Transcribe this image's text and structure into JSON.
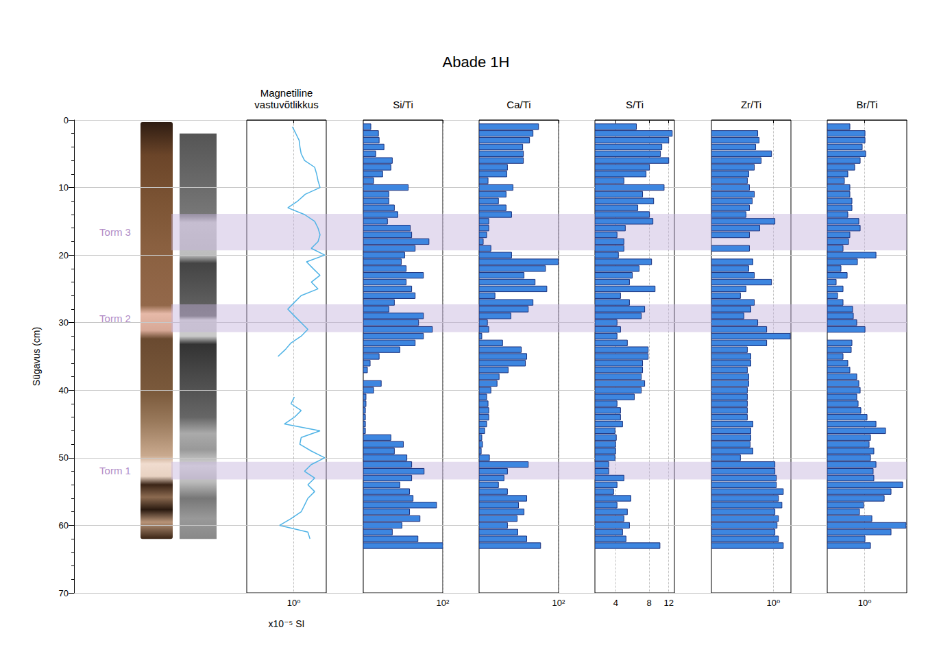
{
  "title": "Abade 1H",
  "ylabel": "Sügavus (cm)",
  "ylim": [
    0,
    70
  ],
  "yticks": [
    0,
    10,
    20,
    30,
    40,
    50,
    60,
    70
  ],
  "grid": true,
  "storms": [
    {
      "label": "Torm 3",
      "from": 13.9,
      "to": 19.3
    },
    {
      "label": "Torm 2",
      "from": 27.3,
      "to": 31.4
    },
    {
      "label": "Torm 1",
      "from": 50.6,
      "to": 53.2
    }
  ],
  "chart_data": [
    {
      "type": "line",
      "title": "Magnetiline vastuvõtlikkus",
      "xlabel": "x10⁻⁵ SI",
      "log": "x",
      "xlim": [
        0.06,
        7
      ],
      "xticks": [
        {
          "value": 1,
          "label": "10⁰"
        }
      ],
      "color": "#4fb3e6",
      "y": [
        1,
        2,
        3,
        4,
        5,
        6,
        7,
        8,
        9,
        10,
        11,
        12,
        13,
        14,
        15,
        16,
        17,
        18,
        19,
        20,
        21,
        22,
        23,
        24,
        25,
        26,
        27,
        28,
        29,
        30,
        31,
        32,
        33,
        34,
        35,
        36,
        37,
        38,
        39,
        40,
        41,
        42,
        43,
        44,
        45,
        46,
        47,
        48,
        49,
        50,
        51,
        52,
        53,
        54,
        55,
        56,
        57,
        58,
        59,
        60,
        61,
        62
      ],
      "values": [
        0.92,
        1.13,
        1.38,
        1.45,
        1.56,
        1.91,
        3.5,
        3.94,
        4.28,
        4.83,
        2.0,
        1.27,
        0.7,
        1.91,
        3.5,
        4.28,
        4.83,
        4.28,
        2.86,
        6.4,
        2.15,
        3.2,
        4.83,
        2.86,
        4.28,
        1.56,
        1.04,
        0.7,
        1.04,
        1.56,
        2.33,
        1.56,
        0.85,
        0.6,
        0.39,
        null,
        null,
        null,
        null,
        null,
        1.04,
        0.85,
        1.56,
        1.04,
        0.57,
        4.83,
        1.56,
        1.44,
        2.86,
        6.4,
        2.86,
        1.91,
        3.5,
        2.33,
        3.5,
        2.33,
        1.91,
        1.56,
        0.85,
        0.43,
        2.33,
        2.64
      ]
    },
    {
      "type": "bar",
      "title": "Si/Ti",
      "log": "x",
      "orientation": "horizontal",
      "xlim": [
        1,
        100
      ],
      "xticks": [
        {
          "value": 100,
          "label": "10²"
        }
      ],
      "color": "#3d86e0",
      "y": [
        1,
        2,
        3,
        4,
        5,
        6,
        7,
        8,
        9,
        10,
        11,
        12,
        13,
        14,
        15,
        16,
        17,
        18,
        19,
        20,
        21,
        22,
        23,
        24,
        25,
        26,
        27,
        28,
        29,
        30,
        31,
        32,
        33,
        34,
        35,
        36,
        37,
        38,
        39,
        40,
        41,
        42,
        43,
        44,
        45,
        46,
        47,
        48,
        49,
        50,
        51,
        52,
        53,
        54,
        55,
        56,
        57,
        58,
        59,
        60,
        61,
        62,
        63
      ],
      "values": [
        1.55,
        2.41,
        2.51,
        3.32,
        2.06,
        5.38,
        4.96,
        3.07,
        1.82,
        13.5,
        4.4,
        4.4,
        6.06,
        7.41,
        4.06,
        15.2,
        16.5,
        44.9,
        20.2,
        11.0,
        9.05,
        12.0,
        32.6,
        12.0,
        16.5,
        20.2,
        6.06,
        4.4,
        32.6,
        24.6,
        54.8,
        32.6,
        20.2,
        8.35,
        2.51,
        1.49,
        1.27,
        null,
        2.83,
        1.82,
        1.17,
        1.17,
        1.13,
        1.13,
        1.13,
        1.13,
        4.96,
        10.2,
        6.06,
        12.5,
        16.5,
        33.9,
        16.5,
        8.35,
        14.6,
        17.9,
        69.7,
        14.6,
        26.7,
        9.42,
        5.38,
        23.7,
        100
      ]
    },
    {
      "type": "bar",
      "title": "Ca/Ti",
      "log": "x",
      "orientation": "horizontal",
      "xlim": [
        1,
        100
      ],
      "xticks": [
        {
          "value": 100,
          "label": "10²"
        }
      ],
      "color": "#3d86e0",
      "y": [
        1,
        2,
        3,
        4,
        5,
        6,
        7,
        8,
        9,
        10,
        11,
        12,
        13,
        14,
        15,
        16,
        17,
        18,
        19,
        20,
        21,
        22,
        23,
        24,
        25,
        26,
        27,
        28,
        29,
        30,
        31,
        32,
        33,
        34,
        35,
        36,
        37,
        38,
        39,
        40,
        41,
        42,
        43,
        44,
        45,
        46,
        47,
        48,
        49,
        50,
        51,
        52,
        53,
        54,
        55,
        56,
        57,
        58,
        59,
        60,
        61,
        62,
        63
      ],
      "values": [
        31.3,
        22.7,
        18.6,
        12.5,
        13.0,
        13.0,
        5.17,
        4.96,
        1.68,
        7.11,
        4.77,
        3.07,
        4.77,
        6.57,
        1.75,
        1.75,
        1.55,
        1.27,
        1.98,
        6.57,
        98,
        46.8,
        13.5,
        25.6,
        50.6,
        2.51,
        22.7,
        17.2,
        6.31,
        1.62,
        1.75,
        1.17,
        3.9,
        11.5,
        15.8,
        14.6,
        5.38,
        3.19,
        2.83,
        1.98,
        1.55,
        1.68,
        1.75,
        1.75,
        1.55,
        1.38,
        1.17,
        1.22,
        1.13,
        1.82,
        17.2,
        5.17,
        4.23,
        3.07,
        5.17,
        15.8,
        9.8,
        13.5,
        9.05,
        5.17,
        9.42,
        15.8,
        35.3
      ]
    },
    {
      "type": "bar",
      "title": "S/Ti",
      "log": "x",
      "orientation": "horizontal",
      "xlim": [
        2.6,
        13.5
      ],
      "xticks": [
        4,
        8,
        12
      ],
      "color": "#3d86e0",
      "y": [
        1,
        2,
        3,
        4,
        5,
        6,
        7,
        8,
        9,
        10,
        11,
        12,
        13,
        14,
        15,
        16,
        17,
        18,
        19,
        20,
        21,
        22,
        23,
        24,
        25,
        26,
        27,
        28,
        29,
        30,
        31,
        32,
        33,
        34,
        35,
        36,
        37,
        38,
        39,
        40,
        41,
        42,
        43,
        44,
        45,
        46,
        47,
        48,
        49,
        50,
        51,
        52,
        53,
        54,
        55,
        56,
        57,
        58,
        59,
        60,
        61,
        62,
        63
      ],
      "values": [
        6.14,
        12.9,
        12.0,
        10.4,
        10.1,
        12.0,
        8.05,
        7.5,
        4.74,
        10.9,
        6.98,
        8.78,
        6.32,
        8.05,
        8.65,
        4.88,
        4.11,
        4.74,
        4.74,
        4.23,
        8.41,
        6.5,
        5.64,
        5.32,
        9.04,
        4.42,
        5.32,
        7.29,
        6.79,
        4.11,
        4.42,
        4.11,
        5.09,
        7.84,
        7.84,
        6.98,
        6.98,
        6.79,
        7.29,
        6.79,
        5.88,
        4.11,
        4.42,
        4.42,
        4.61,
        3.94,
        4.05,
        3.99,
        3.99,
        3.94,
        3.46,
        3.46,
        4.74,
        4.11,
        3.83,
        5.47,
        4.11,
        5.09,
        4.74,
        5.32,
        4.61,
        4.95,
        10.0
      ]
    },
    {
      "type": "bar",
      "title": "Zr/Ti",
      "log": "x",
      "orientation": "horizontal",
      "xlim": [
        0.03,
        2.7
      ],
      "xticks": [
        {
          "value": 1,
          "label": "10⁰"
        }
      ],
      "color": "#3d86e0",
      "y": [
        1,
        2,
        3,
        4,
        5,
        6,
        7,
        8,
        9,
        10,
        11,
        12,
        13,
        14,
        15,
        16,
        17,
        18,
        19,
        20,
        21,
        22,
        23,
        24,
        25,
        26,
        27,
        28,
        29,
        30,
        31,
        32,
        33,
        34,
        35,
        36,
        37,
        38,
        39,
        40,
        41,
        42,
        43,
        44,
        45,
        46,
        47,
        48,
        49,
        50,
        51,
        52,
        53,
        54,
        55,
        56,
        57,
        58,
        59,
        60,
        61,
        62,
        63
      ],
      "values": [
        null,
        0.412,
        0.445,
        0.367,
        0.9,
        0.5,
        0.339,
        0.248,
        0.229,
        0.258,
        0.339,
        0.301,
        0.258,
        0.212,
        1.09,
        0.462,
        0.258,
        null,
        0.258,
        null,
        0.313,
        0.248,
        0.339,
        0.9,
        0.212,
        0.155,
        0.339,
        0.279,
        0.188,
        0.412,
        0.684,
        2.6,
        0.684,
        0.229,
        0.279,
        0.279,
        0.229,
        0.248,
        0.248,
        0.229,
        0.229,
        0.229,
        0.229,
        0.229,
        0.313,
        0.279,
        0.279,
        0.268,
        0.313,
        0.155,
        1.09,
        1.09,
        1.18,
        1.18,
        1.75,
        1.33,
        1.62,
        1.09,
        1.33,
        1.23,
        1.09,
        1.33,
        1.75
      ]
    },
    {
      "type": "bar",
      "title": "Br/Ti",
      "log": "x",
      "orientation": "horizontal",
      "xlim": [
        0.11,
        12
      ],
      "xticks": [
        {
          "value": 1,
          "label": "10⁰"
        }
      ],
      "color": "#3d86e0",
      "y": [
        1,
        2,
        3,
        4,
        5,
        6,
        7,
        8,
        9,
        10,
        11,
        12,
        13,
        14,
        15,
        16,
        17,
        18,
        19,
        20,
        21,
        22,
        23,
        24,
        25,
        26,
        27,
        28,
        29,
        30,
        31,
        32,
        33,
        34,
        35,
        36,
        37,
        38,
        39,
        40,
        41,
        42,
        43,
        44,
        45,
        46,
        47,
        48,
        49,
        50,
        51,
        52,
        53,
        54,
        55,
        56,
        57,
        58,
        59,
        60,
        61,
        62,
        63
      ],
      "values": [
        0.418,
        1.02,
        1.02,
        0.866,
        1.06,
        0.768,
        0.555,
        0.37,
        0.302,
        0.418,
        0.418,
        0.472,
        0.472,
        0.37,
        0.708,
        0.768,
        0.418,
        0.386,
        0.279,
        1.95,
        0.652,
        0.247,
        0.356,
        0.186,
        0.279,
        0.202,
        0.279,
        0.491,
        0.512,
        0.627,
        1.02,
        null,
        0.472,
        0.453,
        0.279,
        0.37,
        0.418,
        0.627,
        0.708,
        0.768,
        0.627,
        0.68,
        0.799,
        1.15,
        1.95,
        3.43,
        1.41,
        1.3,
        1.72,
        1.41,
        1.95,
        1.65,
        1.72,
        9.43,
        4.74,
        3.17,
        0.939,
        0.737,
        1.53,
        11.5,
        4.74,
        1.02,
        1.41
      ]
    }
  ]
}
